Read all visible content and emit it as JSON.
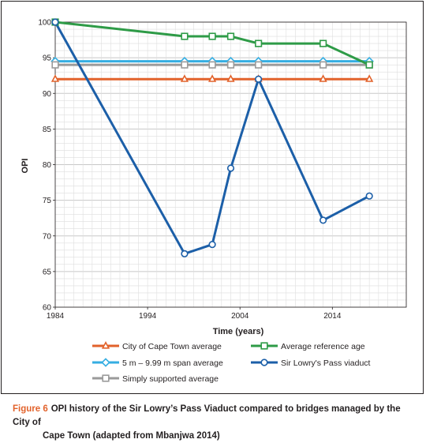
{
  "chart_data": {
    "type": "line",
    "xlabel": "Time (years)",
    "ylabel": "OPI",
    "xlim": [
      1984,
      2022
    ],
    "ylim": [
      60,
      100
    ],
    "x_ticks": [
      1984,
      1994,
      2004,
      2014
    ],
    "y_ticks": [
      60,
      65,
      70,
      75,
      80,
      85,
      90,
      95,
      100
    ],
    "grid": true,
    "legend_position": "bottom",
    "series": [
      {
        "name": "City of Cape Town average",
        "color": "#e2622b",
        "marker": "triangle",
        "x": [
          1984,
          1998,
          2001,
          2003,
          2006,
          2013,
          2018
        ],
        "y": [
          92,
          92,
          92,
          92,
          92,
          92,
          92
        ]
      },
      {
        "name": "Average reference age",
        "color": "#2e9b47",
        "marker": "square",
        "x": [
          1984,
          1998,
          2001,
          2003,
          2006,
          2013,
          2018
        ],
        "y": [
          100,
          98,
          98,
          98,
          97,
          97,
          94
        ]
      },
      {
        "name": "5 m – 9.99 m span average",
        "color": "#35aee2",
        "marker": "diamond",
        "x": [
          1984,
          1998,
          2001,
          2003,
          2006,
          2013,
          2018
        ],
        "y": [
          94.5,
          94.5,
          94.5,
          94.5,
          94.5,
          94.5,
          94.5
        ]
      },
      {
        "name": "Sir Lowry's Pass viaduct",
        "color": "#1c5fa8",
        "marker": "circle",
        "x": [
          1984,
          1998,
          2001,
          2003,
          2006,
          2013,
          2018
        ],
        "y": [
          100,
          67.5,
          68.8,
          79.5,
          92,
          72.2,
          75.6
        ]
      },
      {
        "name": "Simply supported average",
        "color": "#9a9a9a",
        "marker": "square",
        "x": [
          1984,
          1998,
          2001,
          2003,
          2006,
          2013,
          2018
        ],
        "y": [
          94,
          94,
          94,
          94,
          94,
          94,
          94
        ]
      }
    ]
  },
  "caption": {
    "label": "Figure 6",
    "text_line1": "OPI history of the Sir Lowry’s Pass Viaduct compared to bridges managed by the City of",
    "text_line2": "Cape Town (adapted from Mbanjwa 2014)"
  }
}
